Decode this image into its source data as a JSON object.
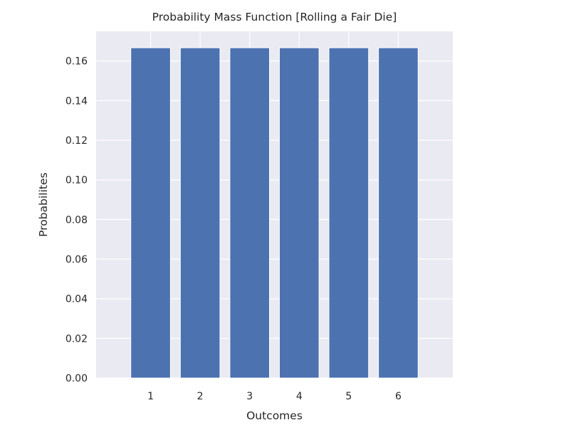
{
  "chart_data": {
    "type": "bar",
    "title": "Probability Mass Function [Rolling a Fair Die]",
    "xlabel": "Outcomes",
    "ylabel": "Probabilites",
    "categories": [
      "1",
      "2",
      "3",
      "4",
      "5",
      "6"
    ],
    "values": [
      0.1667,
      0.1667,
      0.1667,
      0.1667,
      0.1667,
      0.1667
    ],
    "ylim": [
      0,
      0.175
    ],
    "yticks": [
      "0.00",
      "0.02",
      "0.04",
      "0.06",
      "0.08",
      "0.10",
      "0.12",
      "0.14",
      "0.16"
    ],
    "grid": true,
    "legend": "none"
  },
  "colors": {
    "bar": "#4c72b0",
    "plot_background": "#eaeaf2",
    "grid": "#ffffff",
    "text": "#262626"
  }
}
